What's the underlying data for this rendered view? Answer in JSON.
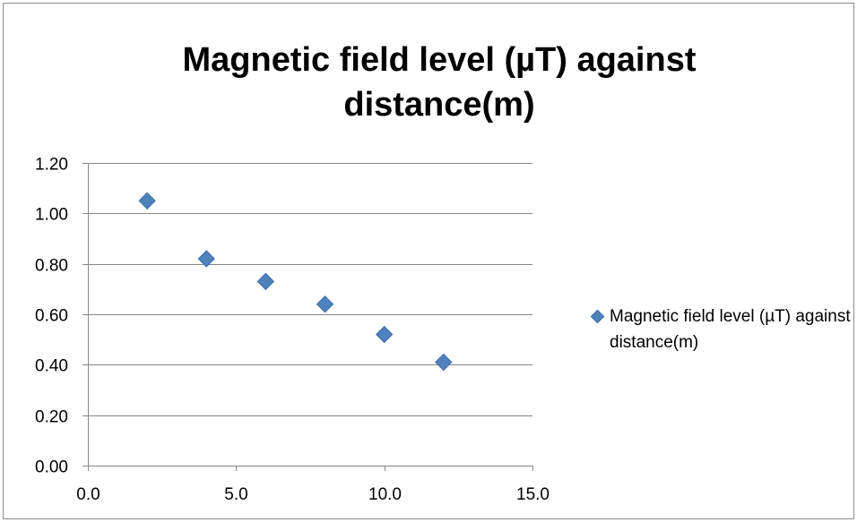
{
  "chart_data": {
    "type": "scatter",
    "title": "Magnetic field level (µT) against distance(m)",
    "title_lines": [
      "Magnetic field level (µT) against",
      "distance(m)"
    ],
    "xlabel": "",
    "ylabel": "",
    "xlim": [
      0,
      15
    ],
    "ylim": [
      0,
      1.2
    ],
    "x_ticks": [
      "0.0",
      "5.0",
      "10.0",
      "15.0"
    ],
    "y_ticks": [
      "0.00",
      "0.20",
      "0.40",
      "0.60",
      "0.80",
      "1.00",
      "1.20"
    ],
    "grid": "horizontal",
    "legend_position": "right",
    "series": [
      {
        "name": "Magnetic field level (µT) against distance(m)",
        "color": "#4F81BD",
        "marker": "diamond",
        "x": [
          2,
          4,
          6,
          8,
          10,
          12
        ],
        "y": [
          1.05,
          0.82,
          0.73,
          0.64,
          0.52,
          0.41
        ]
      }
    ]
  }
}
